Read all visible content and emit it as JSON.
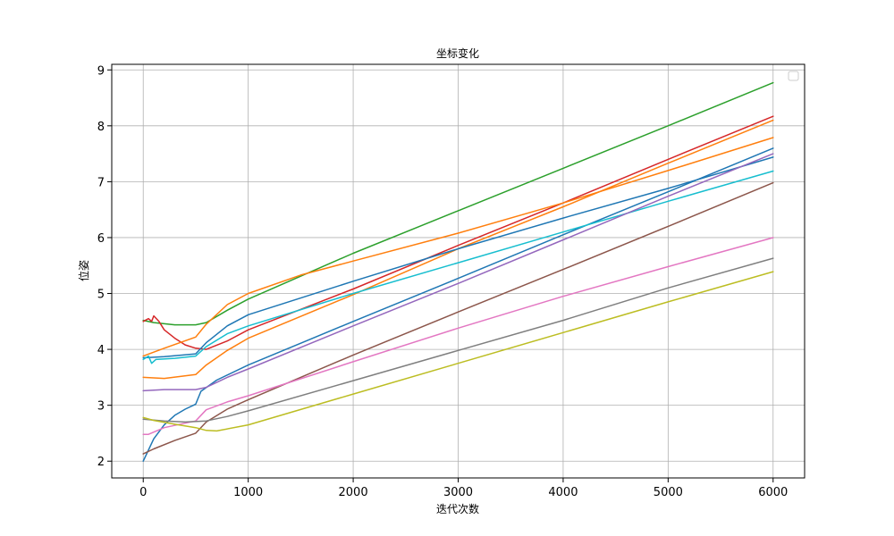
{
  "chart_data": {
    "type": "line",
    "title": "坐标变化",
    "xlabel": "迭代次数",
    "ylabel": "位姿",
    "xlim": [
      -300,
      6300
    ],
    "ylim": [
      1.7,
      9.1
    ],
    "xticks": [
      "0",
      "1000",
      "2000",
      "3000",
      "4000",
      "5000",
      "6000"
    ],
    "yticks": [
      "2",
      "3",
      "4",
      "5",
      "6",
      "7",
      "8",
      "9"
    ],
    "grid": true,
    "legend": "top-right",
    "series": [
      {
        "color": "#2ca02c",
        "points": [
          [
            0,
            4.52
          ],
          [
            100,
            4.48
          ],
          [
            300,
            4.44
          ],
          [
            500,
            4.44
          ],
          [
            600,
            4.48
          ],
          [
            800,
            4.7
          ],
          [
            1000,
            4.9
          ],
          [
            2000,
            5.72
          ],
          [
            3000,
            6.48
          ],
          [
            4000,
            7.24
          ],
          [
            5000,
            8.0
          ],
          [
            6000,
            8.77
          ]
        ]
      },
      {
        "color": "#d62728",
        "points": [
          [
            0,
            4.5
          ],
          [
            50,
            4.55
          ],
          [
            80,
            4.5
          ],
          [
            100,
            4.6
          ],
          [
            150,
            4.5
          ],
          [
            200,
            4.35
          ],
          [
            300,
            4.2
          ],
          [
            400,
            4.08
          ],
          [
            500,
            4.02
          ],
          [
            600,
            4.0
          ],
          [
            800,
            4.15
          ],
          [
            1000,
            4.35
          ],
          [
            2000,
            5.08
          ],
          [
            3000,
            5.86
          ],
          [
            4000,
            6.62
          ],
          [
            5000,
            7.4
          ],
          [
            6000,
            8.17
          ]
        ]
      },
      {
        "color": "#ff7f0e",
        "points": [
          [
            0,
            3.88
          ],
          [
            200,
            4.02
          ],
          [
            500,
            4.22
          ],
          [
            600,
            4.45
          ],
          [
            800,
            4.8
          ],
          [
            1000,
            5.0
          ],
          [
            1500,
            5.33
          ],
          [
            2000,
            5.58
          ],
          [
            3000,
            6.08
          ],
          [
            4000,
            6.62
          ],
          [
            5000,
            7.2
          ],
          [
            6000,
            7.79
          ]
        ]
      },
      {
        "color": "#ff7f0e",
        "points": [
          [
            0,
            3.5
          ],
          [
            200,
            3.48
          ],
          [
            500,
            3.55
          ],
          [
            600,
            3.72
          ],
          [
            800,
            3.98
          ],
          [
            1000,
            4.2
          ],
          [
            2000,
            4.98
          ],
          [
            3000,
            5.8
          ],
          [
            4000,
            6.55
          ],
          [
            5000,
            7.33
          ],
          [
            6000,
            8.1
          ]
        ]
      },
      {
        "color": "#1f77b4",
        "points": [
          [
            0,
            3.85
          ],
          [
            200,
            3.87
          ],
          [
            500,
            3.92
          ],
          [
            600,
            4.12
          ],
          [
            800,
            4.42
          ],
          [
            1000,
            4.62
          ],
          [
            2000,
            5.22
          ],
          [
            3000,
            5.8
          ],
          [
            4000,
            6.35
          ],
          [
            5000,
            6.88
          ],
          [
            6000,
            7.44
          ]
        ]
      },
      {
        "color": "#1f77b4",
        "points": [
          [
            0,
            2.0
          ],
          [
            50,
            2.2
          ],
          [
            100,
            2.4
          ],
          [
            200,
            2.65
          ],
          [
            300,
            2.82
          ],
          [
            400,
            2.93
          ],
          [
            500,
            3.02
          ],
          [
            550,
            3.25
          ],
          [
            700,
            3.45
          ],
          [
            1000,
            3.72
          ],
          [
            2000,
            4.5
          ],
          [
            3000,
            5.27
          ],
          [
            4000,
            6.05
          ],
          [
            5000,
            6.82
          ],
          [
            6000,
            7.6
          ]
        ]
      },
      {
        "color": "#17becf",
        "points": [
          [
            0,
            3.82
          ],
          [
            50,
            3.88
          ],
          [
            80,
            3.75
          ],
          [
            120,
            3.82
          ],
          [
            300,
            3.84
          ],
          [
            500,
            3.88
          ],
          [
            600,
            4.05
          ],
          [
            800,
            4.28
          ],
          [
            1000,
            4.42
          ],
          [
            2000,
            5.0
          ],
          [
            3000,
            5.55
          ],
          [
            4000,
            6.1
          ],
          [
            5000,
            6.65
          ],
          [
            6000,
            7.19
          ]
        ]
      },
      {
        "color": "#9467bd",
        "points": [
          [
            0,
            3.26
          ],
          [
            200,
            3.28
          ],
          [
            500,
            3.28
          ],
          [
            600,
            3.32
          ],
          [
            800,
            3.5
          ],
          [
            1000,
            3.65
          ],
          [
            2000,
            4.42
          ],
          [
            3000,
            5.18
          ],
          [
            4000,
            5.96
          ],
          [
            5000,
            6.74
          ],
          [
            6000,
            7.5
          ]
        ]
      },
      {
        "color": "#8c564b",
        "points": [
          [
            0,
            2.13
          ],
          [
            100,
            2.22
          ],
          [
            300,
            2.37
          ],
          [
            500,
            2.5
          ],
          [
            600,
            2.7
          ],
          [
            800,
            2.93
          ],
          [
            1000,
            3.1
          ],
          [
            2000,
            3.9
          ],
          [
            3000,
            4.67
          ],
          [
            4000,
            5.43
          ],
          [
            5000,
            6.2
          ],
          [
            6000,
            6.98
          ]
        ]
      },
      {
        "color": "#e377c2",
        "points": [
          [
            0,
            2.48
          ],
          [
            50,
            2.48
          ],
          [
            200,
            2.6
          ],
          [
            500,
            2.72
          ],
          [
            600,
            2.92
          ],
          [
            800,
            3.06
          ],
          [
            1000,
            3.17
          ],
          [
            2000,
            3.78
          ],
          [
            3000,
            4.38
          ],
          [
            4000,
            4.95
          ],
          [
            5000,
            5.48
          ],
          [
            6000,
            6.0
          ]
        ]
      },
      {
        "color": "#7f7f7f",
        "points": [
          [
            0,
            2.75
          ],
          [
            200,
            2.72
          ],
          [
            400,
            2.7
          ],
          [
            600,
            2.72
          ],
          [
            800,
            2.8
          ],
          [
            1000,
            2.9
          ],
          [
            2000,
            3.44
          ],
          [
            3000,
            3.98
          ],
          [
            4000,
            4.52
          ],
          [
            5000,
            5.1
          ],
          [
            6000,
            5.63
          ]
        ]
      },
      {
        "color": "#bcbd22",
        "points": [
          [
            0,
            2.78
          ],
          [
            100,
            2.73
          ],
          [
            300,
            2.66
          ],
          [
            500,
            2.6
          ],
          [
            600,
            2.55
          ],
          [
            700,
            2.54
          ],
          [
            1000,
            2.65
          ],
          [
            2000,
            3.2
          ],
          [
            3000,
            3.75
          ],
          [
            4000,
            4.3
          ],
          [
            5000,
            4.85
          ],
          [
            6000,
            5.39
          ]
        ]
      }
    ]
  }
}
